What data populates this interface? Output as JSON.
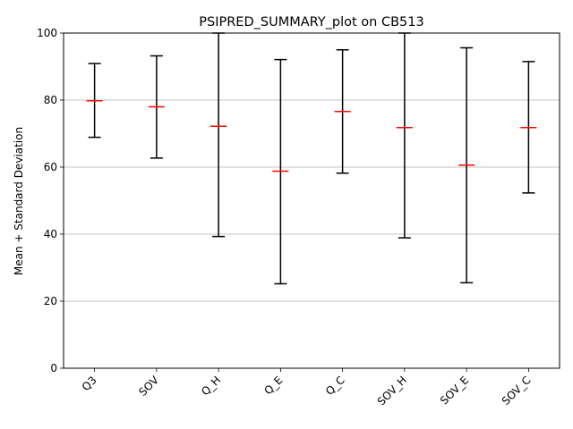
{
  "chart_data": {
    "type": "errorbar",
    "title": "PSIPRED_SUMMARY_plot on CB513",
    "xlabel": "",
    "ylabel": "Mean + Standard Deviation",
    "ylim": [
      0,
      100
    ],
    "yticks": [
      0,
      20,
      40,
      60,
      80,
      100
    ],
    "grid": "horizontal",
    "categories": [
      "Q3",
      "SOV",
      "Q_H",
      "Q_E",
      "Q_C",
      "SOV_H",
      "SOV_E",
      "SOV_C"
    ],
    "mean": [
      79.8,
      78.0,
      72.2,
      58.8,
      76.6,
      71.8,
      60.6,
      71.8
    ],
    "lower": [
      68.9,
      62.7,
      39.3,
      25.2,
      58.2,
      38.9,
      25.5,
      52.3
    ],
    "upper": [
      90.9,
      93.2,
      100.0,
      92.1,
      95.0,
      100.0,
      95.6,
      91.5
    ],
    "colors": {
      "mean": "#ff0000",
      "bar": "#000000",
      "grid": "#b0b0b0"
    }
  }
}
